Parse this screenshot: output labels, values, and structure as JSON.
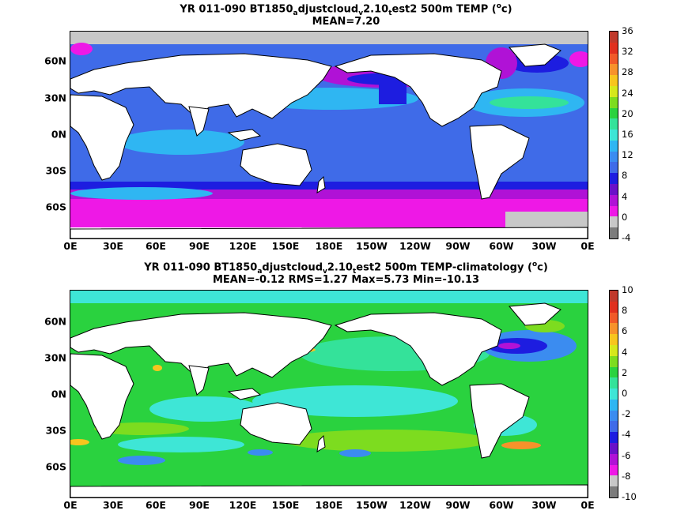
{
  "panels": [
    {
      "title_line1_a": "YR 011-090 BT1850",
      "title_sub1": "a",
      "title_line1_b": "djustcloud",
      "title_sub2": "v",
      "title_line1_c": "2.10",
      "title_sub3": "t",
      "title_line1_d": "est2 500m TEMP (",
      "title_sup": "o",
      "title_line1_e": "c)",
      "title_line2": "MEAN=7.20",
      "colorbar": {
        "ticks": [
          "36",
          "32",
          "28",
          "24",
          "20",
          "16",
          "12",
          "8",
          "4",
          "0",
          "-4"
        ],
        "colors": [
          "#c0392b",
          "#e0301e",
          "#f05a28",
          "#f7922b",
          "#f7c51e",
          "#d6e81c",
          "#7ddc1f",
          "#2ad23f",
          "#34e29a",
          "#3ee6d6",
          "#2fb6f2",
          "#3b8cf0",
          "#3f6be8",
          "#1d1de0",
          "#6a11c8",
          "#b012d6",
          "#ee18e6",
          "#c8c8c8",
          "#7c7c7c"
        ],
        "range": [
          -4,
          36
        ]
      }
    },
    {
      "title_line1_a": "YR 011-090 BT1850",
      "title_sub1": "a",
      "title_line1_b": "djustcloud",
      "title_sub2": "v",
      "title_line1_c": "2.10",
      "title_sub3": "t",
      "title_line1_d": "est2 500m TEMP-climatology (",
      "title_sup": "o",
      "title_line1_e": "c)",
      "title_line2": "MEAN=-0.12   RMS=1.27   Max=5.73   Min=-10.13",
      "colorbar": {
        "ticks": [
          "10",
          "8",
          "6",
          "4",
          "2",
          "0",
          "-2",
          "-4",
          "-6",
          "-8",
          "-10"
        ],
        "colors": [
          "#c0392b",
          "#e0301e",
          "#f05a28",
          "#f7922b",
          "#f7c51e",
          "#d6e81c",
          "#7ddc1f",
          "#2ad23f",
          "#34e29a",
          "#3ee6d6",
          "#2fb6f2",
          "#3b8cf0",
          "#3f6be8",
          "#1d1de0",
          "#6a11c8",
          "#b012d6",
          "#ee18e6",
          "#c8c8c8",
          "#7c7c7c"
        ],
        "range": [
          -10,
          10
        ]
      }
    }
  ],
  "x_ticks": [
    "0E",
    "30E",
    "60E",
    "90E",
    "120E",
    "150E",
    "180E",
    "150W",
    "120W",
    "90W",
    "60W",
    "30W",
    "0E"
  ],
  "y_ticks": [
    "60N",
    "30N",
    "0N",
    "30S",
    "60S"
  ],
  "colors": {
    "land": "#ffffff",
    "coast": "#000000",
    "ice": "#c8c8c8",
    "top_deep": "#3f6be8",
    "top_mid": "#2fb6f2",
    "top_warm": "#34e29a",
    "top_cold": "#1d1de0",
    "top_purple": "#b012d6",
    "top_magenta": "#ee18e6",
    "bot_base": "#2ad23f",
    "bot_cyan": "#3ee6d6",
    "bot_blue": "#3b8cf0",
    "bot_yellow": "#f7c51e",
    "bot_green_light": "#7ddc1f",
    "bot_neg": "#1d1de0"
  }
}
